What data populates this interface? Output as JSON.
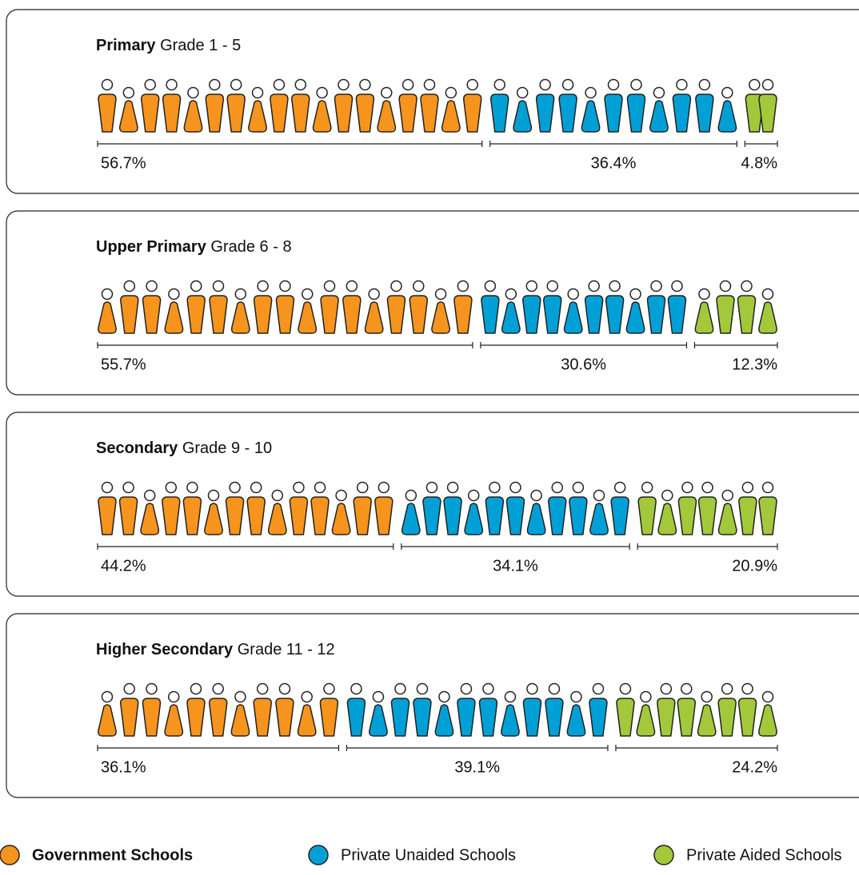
{
  "chart_data": {
    "type": "pictogram",
    "series": [
      {
        "name": "Government Schools",
        "color": "#f7941d"
      },
      {
        "name": "Private Unaided Schools",
        "color": "#00a0d6"
      },
      {
        "name": "Private Aided Schools",
        "color": "#a3c93a"
      }
    ],
    "panels": [
      {
        "level": "Primary",
        "grades": "Grade 1 - 5",
        "values": [
          56.7,
          36.4,
          4.8
        ],
        "value_labels": [
          "56.7%",
          "36.4%",
          "4.8%"
        ]
      },
      {
        "level": "Upper Primary",
        "grades": "Grade 6 - 8",
        "values": [
          55.7,
          30.6,
          12.3
        ],
        "value_labels": [
          "55.7%",
          "30.6%",
          "12.3%"
        ]
      },
      {
        "level": "Secondary",
        "grades": "Grade 9 - 10",
        "values": [
          44.2,
          34.1,
          20.9
        ],
        "value_labels": [
          "44.2%",
          "34.1%",
          "20.9%"
        ]
      },
      {
        "level": "Higher Secondary",
        "grades": "Grade 11 - 12",
        "values": [
          36.1,
          39.1,
          24.2
        ],
        "value_labels": [
          "36.1%",
          "39.1%",
          "24.2%"
        ]
      }
    ]
  }
}
